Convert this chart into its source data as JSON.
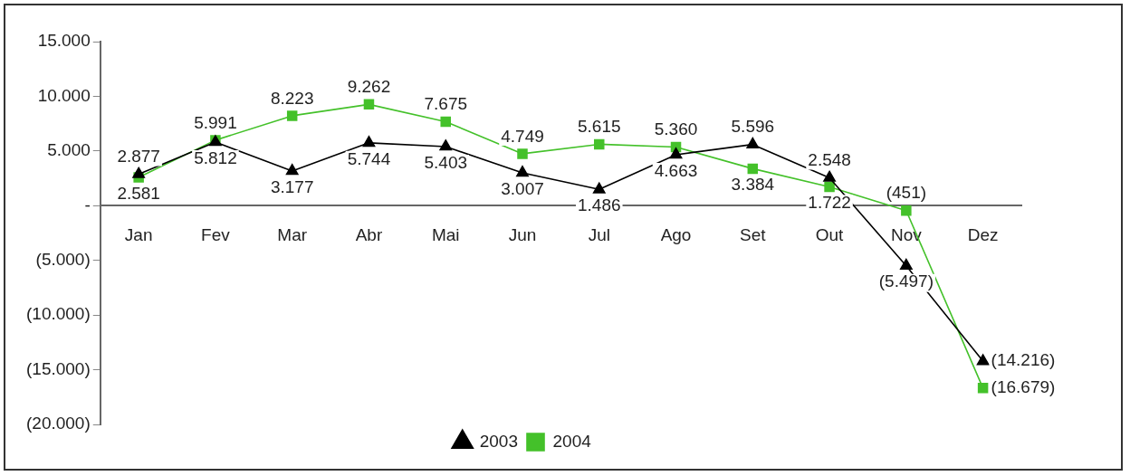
{
  "chart_data": {
    "type": "line",
    "categories": [
      "Jan",
      "Fev",
      "Mar",
      "Abr",
      "Mai",
      "Jun",
      "Jul",
      "Ago",
      "Set",
      "Out",
      "Nov",
      "Dez"
    ],
    "series": [
      {
        "name": "2003",
        "color": "#000000",
        "marker": "triangle",
        "values": [
          2877,
          5812,
          3177,
          5744,
          5403,
          3007,
          1486,
          4663,
          5596,
          2548,
          -5497,
          -14216
        ],
        "value_labels": [
          "2.877",
          "5.812",
          "3.177",
          "5.744",
          "5.403",
          "3.007",
          "1.486",
          "4.663",
          "5.596",
          "2.548",
          "(5.497)",
          "(14.216)"
        ]
      },
      {
        "name": "2004",
        "color": "#44c12a",
        "marker": "square",
        "values": [
          2581,
          5991,
          8223,
          9262,
          7675,
          4749,
          5615,
          5360,
          3384,
          1722,
          -451,
          -16679
        ],
        "value_labels": [
          "2.581",
          "5.991",
          "8.223",
          "9.262",
          "7.675",
          "4.749",
          "5.615",
          "5.360",
          "3.384",
          "1.722",
          "(451)",
          "(16.679)"
        ]
      }
    ],
    "ylim": [
      -20000,
      15000
    ],
    "yticks": [
      {
        "value": 15000,
        "label": "15.000"
      },
      {
        "value": 10000,
        "label": "10.000"
      },
      {
        "value": 5000,
        "label": "5.000"
      },
      {
        "value": 0,
        "label": "-"
      },
      {
        "value": -5000,
        "label": "(5.000)"
      },
      {
        "value": -10000,
        "label": "(10.000)"
      },
      {
        "value": -15000,
        "label": "(15.000)"
      },
      {
        "value": -20000,
        "label": "(20.000)"
      }
    ],
    "grid": false,
    "legend": "bottom",
    "line_style": "solid"
  }
}
